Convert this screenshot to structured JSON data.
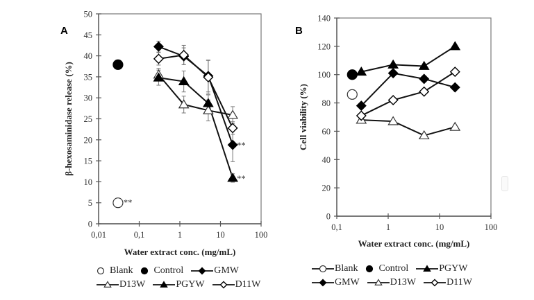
{
  "figure": {
    "panels": [
      "A",
      "B"
    ]
  },
  "chart_data": [
    {
      "type": "line",
      "panel": "A",
      "title": "",
      "xlabel": "Water extract conc. (mg/mL)",
      "ylabel": "β-hexosaminidase release (%)",
      "xscale": "log",
      "xlim": [
        0.01,
        100
      ],
      "ylim": [
        0,
        50
      ],
      "xticks": [
        0.01,
        0.1,
        1,
        10,
        100
      ],
      "xtick_labels": [
        "0,01",
        "0,1",
        "1",
        "10",
        "100"
      ],
      "yticks": [
        0,
        5,
        10,
        15,
        20,
        25,
        30,
        35,
        40,
        45,
        50
      ],
      "ytick_labels": [
        "0",
        "5",
        "10",
        "15",
        "20",
        "25",
        "30",
        "35",
        "40",
        "45",
        "50"
      ],
      "grid": false,
      "legend_position": "bottom",
      "legend_rows": [
        [
          "Blank",
          "Control",
          "GMW"
        ],
        [
          "D13W",
          "PGYW",
          "D11W"
        ]
      ],
      "x": [
        0.3,
        1.25,
        5,
        20
      ],
      "single_points": [
        {
          "name": "Blank",
          "marker": "circle-open",
          "x": 0.03,
          "y": 5.0,
          "annotation": "**"
        },
        {
          "name": "Control",
          "marker": "circle-filled",
          "x": 0.03,
          "y": 37.9,
          "err": 1.0
        }
      ],
      "series": [
        {
          "name": "GMW",
          "marker": "diamond-filled",
          "values": [
            42.2,
            39.9,
            35.2,
            18.8
          ],
          "err": [
            1.3,
            2.0,
            3.8,
            4.0
          ],
          "annotations": [
            "",
            "",
            "",
            "**"
          ]
        },
        {
          "name": "D13W",
          "marker": "triangle-open",
          "values": [
            35.5,
            28.4,
            27.0,
            25.9
          ],
          "err": [
            1.5,
            2.0,
            2.5,
            2.0
          ],
          "annotations": [
            "",
            "",
            "",
            ""
          ]
        },
        {
          "name": "PGYW",
          "marker": "triangle-filled",
          "values": [
            34.8,
            33.9,
            28.7,
            10.9
          ],
          "err": [
            1.8,
            2.5,
            2.0,
            1.0
          ],
          "annotations": [
            "",
            "",
            "",
            "**"
          ]
        },
        {
          "name": "D11W",
          "marker": "diamond-open",
          "values": [
            39.3,
            40.2,
            34.9,
            22.8
          ],
          "err": [
            1.5,
            2.3,
            4.0,
            1.5
          ],
          "annotations": [
            "",
            "",
            "",
            ""
          ]
        }
      ]
    },
    {
      "type": "line",
      "panel": "B",
      "title": "",
      "xlabel": "Water extract conc. (mg/mL)",
      "ylabel": "Cell viability (%)",
      "xscale": "log",
      "xlim": [
        0.1,
        100
      ],
      "ylim": [
        0,
        140
      ],
      "xticks": [
        0.1,
        1,
        10,
        100
      ],
      "xtick_labels": [
        "0,1",
        "1",
        "10",
        "100"
      ],
      "yticks": [
        0,
        20,
        40,
        60,
        80,
        100,
        120,
        140
      ],
      "ytick_labels": [
        "0",
        "20",
        "40",
        "60",
        "80",
        "100",
        "120",
        "140"
      ],
      "grid": false,
      "legend_position": "bottom",
      "legend_rows": [
        [
          "Blank",
          "Control",
          "PGYW"
        ],
        [
          "GMW",
          "D13W",
          "D11W"
        ]
      ],
      "x": [
        0.3,
        1.25,
        5,
        20
      ],
      "single_points": [
        {
          "name": "Blank",
          "marker": "circle-open",
          "x": 0.2,
          "y": 86
        },
        {
          "name": "Control",
          "marker": "circle-filled",
          "x": 0.2,
          "y": 100
        }
      ],
      "series": [
        {
          "name": "PGYW",
          "marker": "triangle-filled",
          "values": [
            102,
            107,
            106,
            120
          ]
        },
        {
          "name": "GMW",
          "marker": "diamond-filled",
          "values": [
            78,
            101,
            97,
            91
          ]
        },
        {
          "name": "D13W",
          "marker": "triangle-open",
          "values": [
            68,
            67,
            57,
            63
          ]
        },
        {
          "name": "D11W",
          "marker": "diamond-open",
          "values": [
            71,
            82,
            88,
            102
          ]
        }
      ]
    }
  ]
}
